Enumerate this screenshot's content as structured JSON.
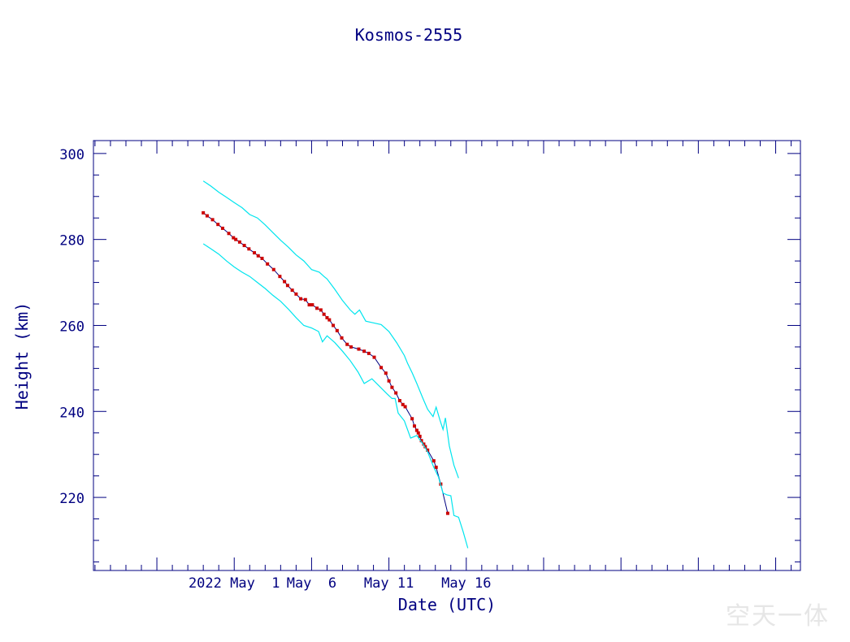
{
  "chart_data": {
    "type": "line",
    "title": "Kosmos-2555",
    "xlabel": "Date (UTC)",
    "ylabel": "Height (km)",
    "x_unit": "days (0 = 2022 May 1)",
    "xlim": [
      -9.1,
      36.6
    ],
    "ylim": [
      203.0,
      303.0
    ],
    "y_ticks": [
      220,
      240,
      260,
      280,
      300
    ],
    "x_ticks": [
      {
        "x": 0,
        "label": "2022 May  1"
      },
      {
        "x": 5,
        "label": "May  6"
      },
      {
        "x": 10,
        "label": "May 11"
      },
      {
        "x": 15,
        "label": "May 16"
      }
    ],
    "grid": false,
    "colors": {
      "axis": "#000080",
      "text": "#000080",
      "data": "#cc0000",
      "connector": "#000080",
      "bounds": "#00e5ee"
    },
    "series": [
      {
        "role": "measured",
        "points": [
          [
            -2.0,
            286.2
          ],
          [
            -1.75,
            285.5
          ],
          [
            -1.4,
            284.6
          ],
          [
            -1.05,
            283.5
          ],
          [
            -0.75,
            282.6
          ],
          [
            -0.35,
            281.4
          ],
          [
            -0.05,
            280.4
          ],
          [
            0.1,
            280.0
          ],
          [
            0.35,
            279.4
          ],
          [
            0.65,
            278.6
          ],
          [
            0.95,
            277.8
          ],
          [
            1.3,
            276.9
          ],
          [
            1.55,
            276.2
          ],
          [
            1.8,
            275.6
          ],
          [
            2.15,
            274.3
          ],
          [
            2.55,
            273.0
          ],
          [
            2.95,
            271.4
          ],
          [
            3.25,
            270.2
          ],
          [
            3.45,
            269.3
          ],
          [
            3.75,
            268.2
          ],
          [
            4.0,
            267.3
          ],
          [
            4.3,
            266.2
          ],
          [
            4.6,
            266.0
          ],
          [
            4.85,
            264.8
          ],
          [
            5.05,
            264.8
          ],
          [
            5.35,
            264.0
          ],
          [
            5.6,
            263.6
          ],
          [
            5.8,
            262.6
          ],
          [
            6.0,
            261.8
          ],
          [
            6.15,
            261.3
          ],
          [
            6.4,
            260.0
          ],
          [
            6.65,
            258.8
          ],
          [
            6.95,
            257.1
          ],
          [
            7.3,
            255.6
          ],
          [
            7.55,
            255.0
          ],
          [
            8.05,
            254.5
          ],
          [
            8.4,
            254.0
          ],
          [
            8.7,
            253.5
          ],
          [
            9.05,
            252.6
          ],
          [
            9.5,
            250.2
          ],
          [
            9.8,
            248.9
          ],
          [
            10.0,
            247.1
          ],
          [
            10.2,
            245.6
          ],
          [
            10.45,
            244.3
          ],
          [
            10.7,
            242.5
          ],
          [
            10.9,
            241.6
          ],
          [
            11.05,
            241.1
          ],
          [
            11.5,
            238.3
          ],
          [
            11.65,
            236.6
          ],
          [
            11.8,
            235.6
          ],
          [
            11.9,
            235.0
          ],
          [
            12.0,
            234.2
          ],
          [
            12.1,
            233.2
          ],
          [
            12.25,
            232.4
          ],
          [
            12.35,
            231.8
          ],
          [
            12.5,
            231.0
          ],
          [
            12.9,
            228.5
          ],
          [
            13.05,
            227.0
          ],
          [
            13.35,
            223.1
          ],
          [
            13.8,
            216.3
          ]
        ]
      },
      {
        "role": "upper-bound",
        "points": [
          [
            -2.0,
            293.6
          ],
          [
            -1.5,
            292.4
          ],
          [
            -1.0,
            291.0
          ],
          [
            -0.5,
            289.8
          ],
          [
            0.0,
            288.6
          ],
          [
            0.5,
            287.4
          ],
          [
            1.0,
            285.8
          ],
          [
            1.5,
            285.0
          ],
          [
            2.0,
            283.4
          ],
          [
            2.5,
            281.6
          ],
          [
            3.0,
            279.8
          ],
          [
            3.5,
            278.2
          ],
          [
            4.0,
            276.4
          ],
          [
            4.5,
            275.0
          ],
          [
            5.0,
            273.0
          ],
          [
            5.5,
            272.4
          ],
          [
            5.8,
            271.4
          ],
          [
            6.0,
            270.8
          ],
          [
            6.5,
            268.4
          ],
          [
            7.0,
            265.8
          ],
          [
            7.5,
            263.6
          ],
          [
            7.8,
            262.6
          ],
          [
            8.1,
            263.6
          ],
          [
            8.5,
            261.0
          ],
          [
            9.0,
            260.6
          ],
          [
            9.5,
            260.2
          ],
          [
            10.0,
            258.6
          ],
          [
            10.5,
            256.0
          ],
          [
            11.0,
            253.0
          ],
          [
            11.2,
            251.2
          ],
          [
            11.5,
            249.0
          ],
          [
            11.8,
            246.5
          ],
          [
            12.2,
            243.0
          ],
          [
            12.5,
            240.5
          ],
          [
            12.85,
            238.8
          ],
          [
            13.05,
            241.0
          ],
          [
            13.3,
            238.0
          ],
          [
            13.5,
            235.8
          ],
          [
            13.65,
            238.5
          ],
          [
            13.9,
            232.0
          ],
          [
            14.2,
            227.5
          ],
          [
            14.5,
            224.5
          ]
        ]
      },
      {
        "role": "lower-bound",
        "points": [
          [
            -2.0,
            279.0
          ],
          [
            -1.5,
            277.8
          ],
          [
            -1.0,
            276.6
          ],
          [
            -0.5,
            275.0
          ],
          [
            0.0,
            273.6
          ],
          [
            0.5,
            272.4
          ],
          [
            1.0,
            271.4
          ],
          [
            1.5,
            270.0
          ],
          [
            2.0,
            268.6
          ],
          [
            2.5,
            267.0
          ],
          [
            3.0,
            265.6
          ],
          [
            3.5,
            263.8
          ],
          [
            4.0,
            261.8
          ],
          [
            4.5,
            260.0
          ],
          [
            5.0,
            259.4
          ],
          [
            5.45,
            258.6
          ],
          [
            5.7,
            256.2
          ],
          [
            6.0,
            257.6
          ],
          [
            6.5,
            256.0
          ],
          [
            7.0,
            254.0
          ],
          [
            7.5,
            251.8
          ],
          [
            8.0,
            249.2
          ],
          [
            8.4,
            246.5
          ],
          [
            8.9,
            247.6
          ],
          [
            9.4,
            245.8
          ],
          [
            9.9,
            244.0
          ],
          [
            10.2,
            243.0
          ],
          [
            10.4,
            243.0
          ],
          [
            10.6,
            239.6
          ],
          [
            11.0,
            237.8
          ],
          [
            11.4,
            233.8
          ],
          [
            11.8,
            234.4
          ],
          [
            12.2,
            232.4
          ],
          [
            12.5,
            230.6
          ],
          [
            12.9,
            227.0
          ],
          [
            13.2,
            224.8
          ],
          [
            13.5,
            221.0
          ],
          [
            13.75,
            220.6
          ],
          [
            14.0,
            220.4
          ],
          [
            14.2,
            215.8
          ],
          [
            14.5,
            215.4
          ],
          [
            14.8,
            212.0
          ],
          [
            15.1,
            208.2
          ]
        ]
      }
    ]
  },
  "watermark": "空天一体"
}
